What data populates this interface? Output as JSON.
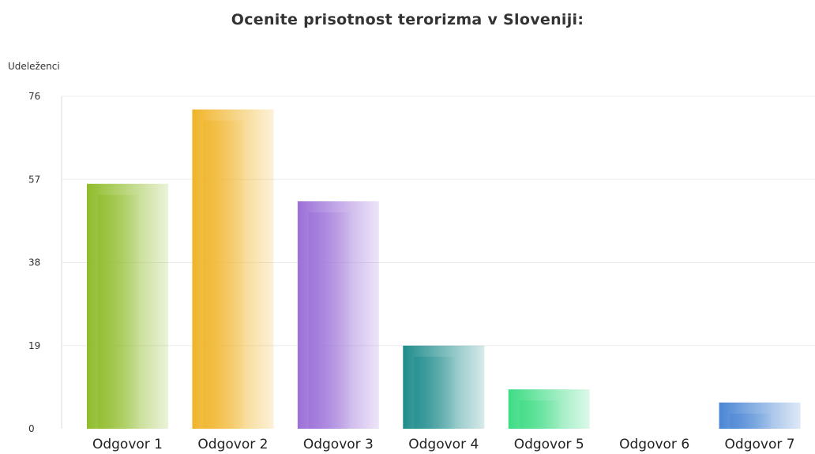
{
  "chart_data": {
    "type": "bar",
    "title": "Ocenite prisotnost terorizma v Sloveniji:",
    "ylabel": "Udeleženci",
    "xlabel": "",
    "categories": [
      "Odgovor 1",
      "Odgovor 2",
      "Odgovor 3",
      "Odgovor 4",
      "Odgovor 5",
      "Odgovor 6",
      "Odgovor 7"
    ],
    "values": [
      56,
      73,
      52,
      19,
      9,
      0,
      6
    ],
    "ylim": [
      0,
      76
    ],
    "yticks": [
      "0",
      "19",
      "38",
      "57",
      "76"
    ],
    "grid": true,
    "colors": [
      "#8fbc2a",
      "#f0b429",
      "#9b6fd8",
      "#1f8c8c",
      "#3ddc84",
      "#cccccc",
      "#4a86d4"
    ]
  }
}
